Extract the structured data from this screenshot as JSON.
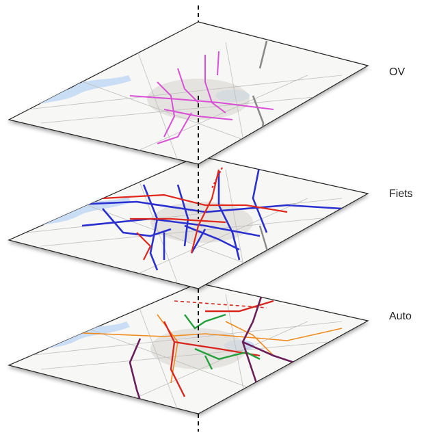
{
  "layers": [
    {
      "label": "OV"
    },
    {
      "label": "Fiets"
    },
    {
      "label": "Auto"
    }
  ],
  "colors": {
    "map_background": "#f7f7f5",
    "water": "#c9def4",
    "built_up": "#dcdad6",
    "road_grey": "#8a8a8a",
    "ov_lines": "#d94fd6",
    "fiets_primary": "#2a2fcf",
    "fiets_secondary": "#e0271c",
    "auto_orange": "#f08a1c",
    "auto_red": "#d8261e",
    "auto_green": "#22a03a",
    "auto_purple": "#6b1f5a",
    "axis": "#111111"
  },
  "icons": {
    "axis": "dashed-vertical-line"
  }
}
